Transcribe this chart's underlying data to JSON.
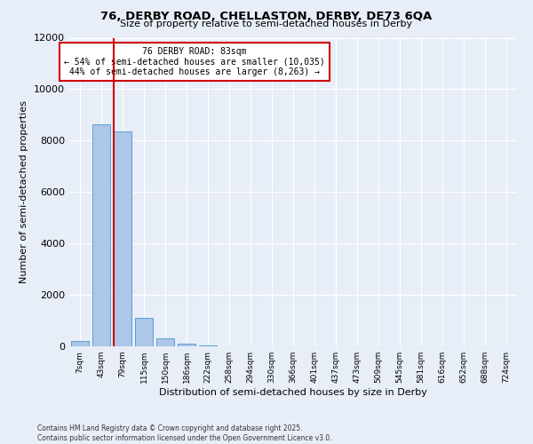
{
  "title_line1": "76, DERBY ROAD, CHELLASTON, DERBY, DE73 6QA",
  "title_line2": "Size of property relative to semi-detached houses in Derby",
  "xlabel": "Distribution of semi-detached houses by size in Derby",
  "ylabel": "Number of semi-detached properties",
  "footer_line1": "Contains HM Land Registry data © Crown copyright and database right 2025.",
  "footer_line2": "Contains public sector information licensed under the Open Government Licence v3.0.",
  "categories": [
    "7sqm",
    "43sqm",
    "79sqm",
    "115sqm",
    "150sqm",
    "186sqm",
    "222sqm",
    "258sqm",
    "294sqm",
    "330sqm",
    "366sqm",
    "401sqm",
    "437sqm",
    "473sqm",
    "509sqm",
    "545sqm",
    "581sqm",
    "616sqm",
    "652sqm",
    "688sqm",
    "724sqm"
  ],
  "values": [
    200,
    8650,
    8350,
    1100,
    300,
    100,
    50,
    0,
    0,
    0,
    0,
    0,
    0,
    0,
    0,
    0,
    0,
    0,
    0,
    0,
    0
  ],
  "bar_color": "#aec6e8",
  "bar_edge_color": "#5a9fd4",
  "background_color": "#e8eef8",
  "plot_bg_color": "#e8eef8",
  "red_line_color": "#cc0000",
  "red_line_index": 2,
  "annotation_text_line1": "76 DERBY ROAD: 83sqm",
  "annotation_text_line2": "← 54% of semi-detached houses are smaller (10,035)",
  "annotation_text_line3": "44% of semi-detached houses are larger (8,263) →",
  "annotation_box_color": "#cc0000",
  "ylim": [
    0,
    12000
  ],
  "yticks": [
    0,
    2000,
    4000,
    6000,
    8000,
    10000,
    12000
  ]
}
